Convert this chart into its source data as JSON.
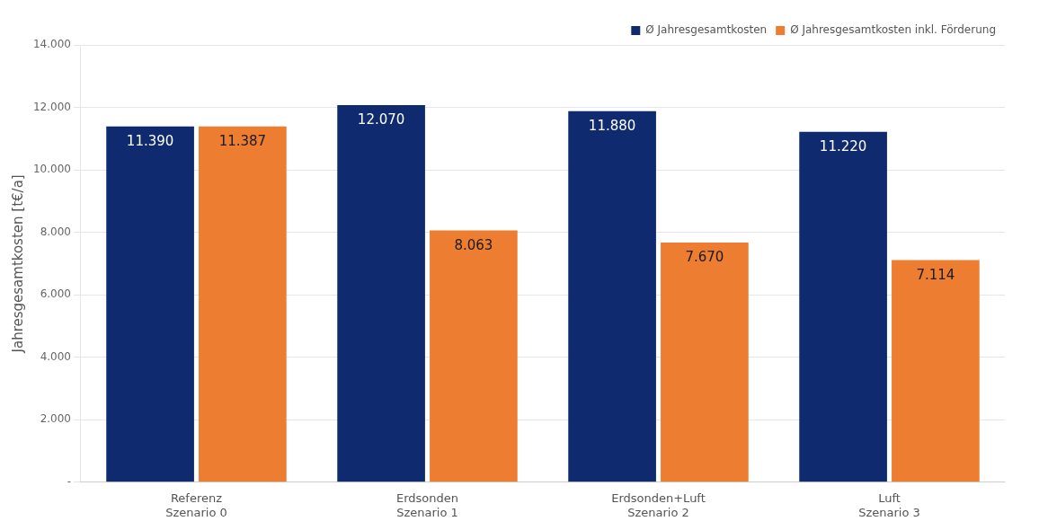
{
  "chart_data": {
    "type": "bar",
    "ylabel": "Jahresgesamtkosten [t€/a]",
    "categories": [
      "Referenz\nSzenario 0",
      "Erdsonden\nSzenario 1",
      "Erdsonden+Luft\nSzenario 2",
      "Luft\nSzenario 3"
    ],
    "series": [
      {
        "name": "Ø Jahresgesamtkosten",
        "color": "#0f2a6e",
        "values": [
          11390,
          12070,
          11880,
          11220
        ],
        "value_labels": [
          "11.390",
          "12.070",
          "11.880",
          "11.220"
        ]
      },
      {
        "name": "Ø Jahresgesamtkosten inkl. Förderung",
        "color": "#ed7d31",
        "values": [
          11387,
          8063,
          7670,
          7114
        ],
        "value_labels": [
          "11.387",
          "8.063",
          "7.670",
          "7.114"
        ]
      }
    ],
    "ylim": [
      0,
      14000
    ],
    "yticks": [
      {
        "value": 0,
        "label": "-"
      },
      {
        "value": 2000,
        "label": "2.000"
      },
      {
        "value": 4000,
        "label": "4.000"
      },
      {
        "value": 6000,
        "label": "6.000"
      },
      {
        "value": 8000,
        "label": "8.000"
      },
      {
        "value": 10000,
        "label": "10.000"
      },
      {
        "value": 12000,
        "label": "12.000"
      },
      {
        "value": 14000,
        "label": "14.000"
      }
    ],
    "grid": "y",
    "legend": "top right"
  }
}
